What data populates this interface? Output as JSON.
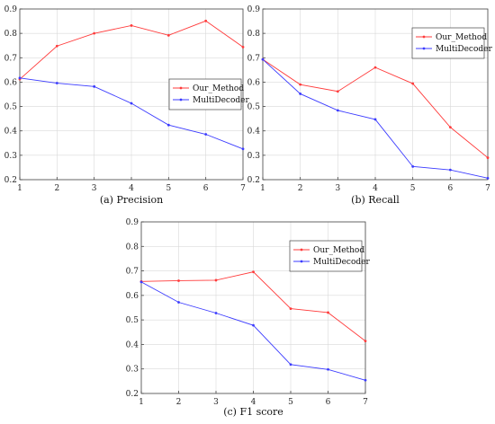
{
  "chart_data": [
    {
      "type": "line",
      "caption": "(a)  Precision",
      "x": [
        1,
        2,
        3,
        4,
        5,
        6,
        7
      ],
      "ylim": [
        0.2,
        0.9
      ],
      "yticks": [
        "0.2",
        "0.3",
        "0.4",
        "0.5",
        "0.6",
        "0.7",
        "0.8",
        "0.9"
      ],
      "grid": true,
      "legend": "right-middle",
      "series": [
        {
          "name": "Our_Method",
          "color": "#ff3b3b",
          "values": [
            0.612,
            0.748,
            0.8,
            0.832,
            0.792,
            0.851,
            0.744
          ]
        },
        {
          "name": "MultiDecoder",
          "color": "#3b3bff",
          "values": [
            0.617,
            0.596,
            0.582,
            0.513,
            0.424,
            0.386,
            0.326
          ]
        }
      ]
    },
    {
      "type": "line",
      "caption": "(b)  Recall",
      "x": [
        1,
        2,
        3,
        4,
        5,
        6,
        7
      ],
      "ylim": [
        0.2,
        0.9
      ],
      "yticks": [
        "0.2",
        "0.3",
        "0.4",
        "0.5",
        "0.6",
        "0.7",
        "0.8",
        "0.9"
      ],
      "grid": true,
      "legend": "top-right",
      "series": [
        {
          "name": "Our_Method",
          "color": "#ff3b3b",
          "values": [
            0.693,
            0.59,
            0.562,
            0.66,
            0.594,
            0.415,
            0.29
          ]
        },
        {
          "name": "MultiDecoder",
          "color": "#3b3bff",
          "values": [
            0.693,
            0.552,
            0.484,
            0.447,
            0.254,
            0.24,
            0.206
          ]
        }
      ]
    },
    {
      "type": "line",
      "caption": "(c)  F1 score",
      "x": [
        1,
        2,
        3,
        4,
        5,
        6,
        7
      ],
      "ylim": [
        0.2,
        0.9
      ],
      "yticks": [
        "0.2",
        "0.3",
        "0.4",
        "0.5",
        "0.6",
        "0.7",
        "0.8",
        "0.9"
      ],
      "grid": true,
      "legend": "top-right",
      "series": [
        {
          "name": "Our_Method",
          "color": "#ff3b3b",
          "values": [
            0.657,
            0.66,
            0.662,
            0.696,
            0.546,
            0.53,
            0.414
          ]
        },
        {
          "name": "MultiDecoder",
          "color": "#3b3bff",
          "values": [
            0.655,
            0.572,
            0.528,
            0.478,
            0.318,
            0.298,
            0.254
          ]
        }
      ]
    }
  ]
}
